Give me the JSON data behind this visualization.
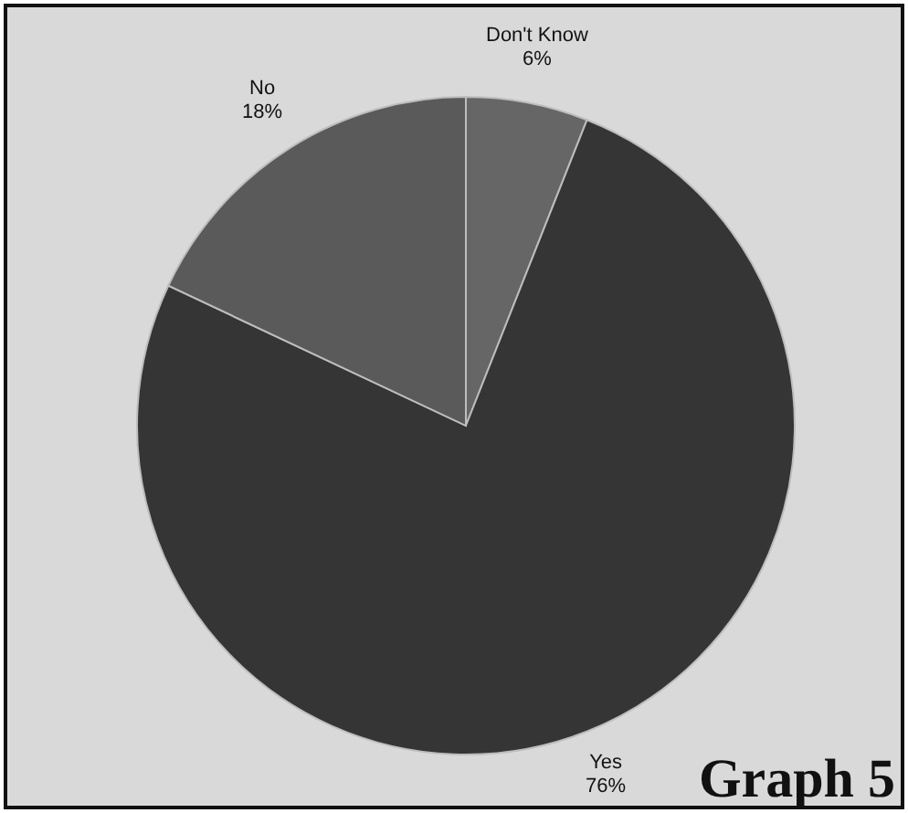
{
  "chart_data": {
    "type": "pie",
    "title": "Graph 5",
    "categories": [
      "Don't Know",
      "Yes",
      "No"
    ],
    "values": [
      6,
      76,
      18
    ],
    "colors": [
      "#666666",
      "#353535",
      "#5a5a5a"
    ],
    "value_labels": [
      "6%",
      "76%",
      "18%"
    ]
  }
}
